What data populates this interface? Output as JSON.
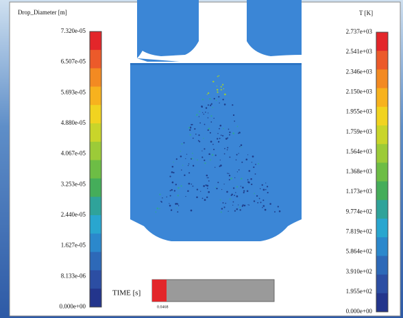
{
  "left_legend": {
    "title": "Drop_Diameter [m]",
    "labels": [
      "7.320e-05",
      "6.507e-05",
      "5.693e-05",
      "4.880e-05",
      "4.067e-05",
      "3.253e-05",
      "2.440e-05",
      "1.627e-05",
      "8.133e-06",
      "0.000e+00"
    ]
  },
  "right_legend": {
    "title": "T [K]",
    "labels": [
      "2.737e+03",
      "2.541e+03",
      "2.346e+03",
      "2.150e+03",
      "1.955e+03",
      "1.759e+03",
      "1.564e+03",
      "1.368e+03",
      "1.173e+03",
      "9.774e+02",
      "7.819e+02",
      "5.864e+02",
      "3.910e+02",
      "1.955e+02",
      "0.000e+00"
    ]
  },
  "time": {
    "label": "TIME [s]",
    "value": "0.0468"
  }
}
